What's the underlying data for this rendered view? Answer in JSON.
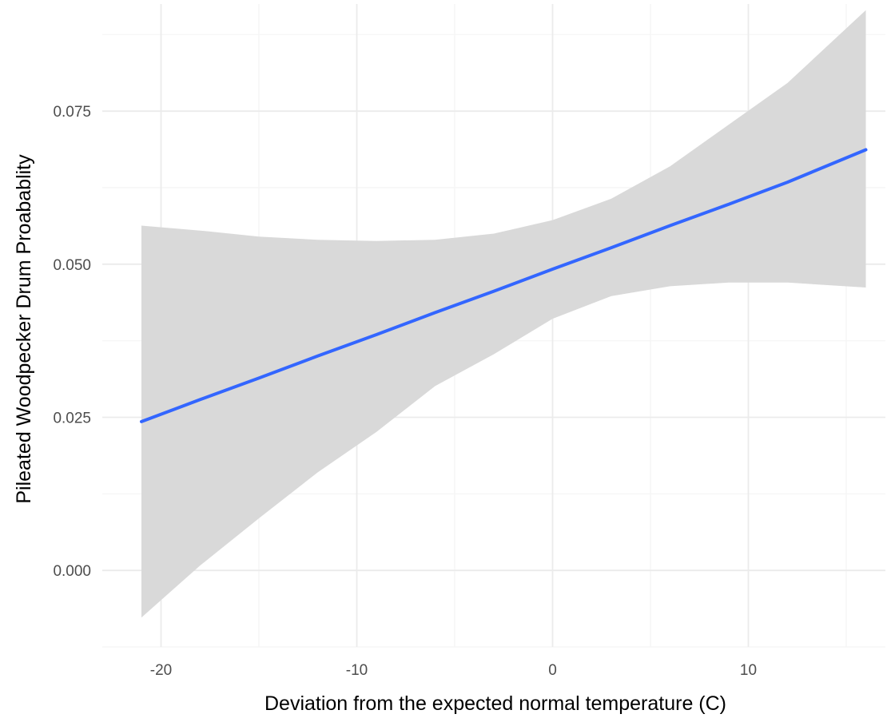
{
  "chart_data": {
    "type": "line",
    "title": "",
    "xlabel": "Deviation from the expected normal temperature (C)",
    "ylabel": "Pileated Woodpecker Drum Proabablity",
    "xlim": [
      -23,
      17
    ],
    "ylim": [
      -0.0125,
      0.0925
    ],
    "x_ticks": [
      -20,
      -10,
      0,
      10
    ],
    "x_tick_labels": [
      "-20",
      "-10",
      "0",
      "10"
    ],
    "y_ticks": [
      0.0,
      0.025,
      0.05,
      0.075
    ],
    "y_tick_labels": [
      "0.000",
      "0.025",
      "0.050",
      "0.075"
    ],
    "grid": true,
    "series": [
      {
        "x": [
          -21,
          -18,
          -15,
          -12,
          -9,
          -6,
          -3,
          0,
          3,
          6,
          9,
          12,
          16
        ],
        "y": [
          0.0243,
          0.0279,
          0.0314,
          0.035,
          0.0385,
          0.0421,
          0.0456,
          0.0492,
          0.0527,
          0.0563,
          0.0598,
          0.0634,
          0.0687
        ],
        "lower": [
          -0.0077,
          0.0008,
          0.0085,
          0.016,
          0.0226,
          0.0301,
          0.0353,
          0.0411,
          0.0448,
          0.0464,
          0.047,
          0.047,
          0.0462
        ],
        "upper": [
          0.0563,
          0.0555,
          0.0545,
          0.054,
          0.0538,
          0.054,
          0.055,
          0.0572,
          0.0607,
          0.066,
          0.0728,
          0.0796,
          0.0915
        ]
      }
    ],
    "colors": {
      "line": "#3366FF",
      "ribbon": "#d9d9d9",
      "grid_major": "#ebebeb",
      "grid_minor": "#f4f4f4",
      "tick_label": "#4d4d4d"
    }
  }
}
